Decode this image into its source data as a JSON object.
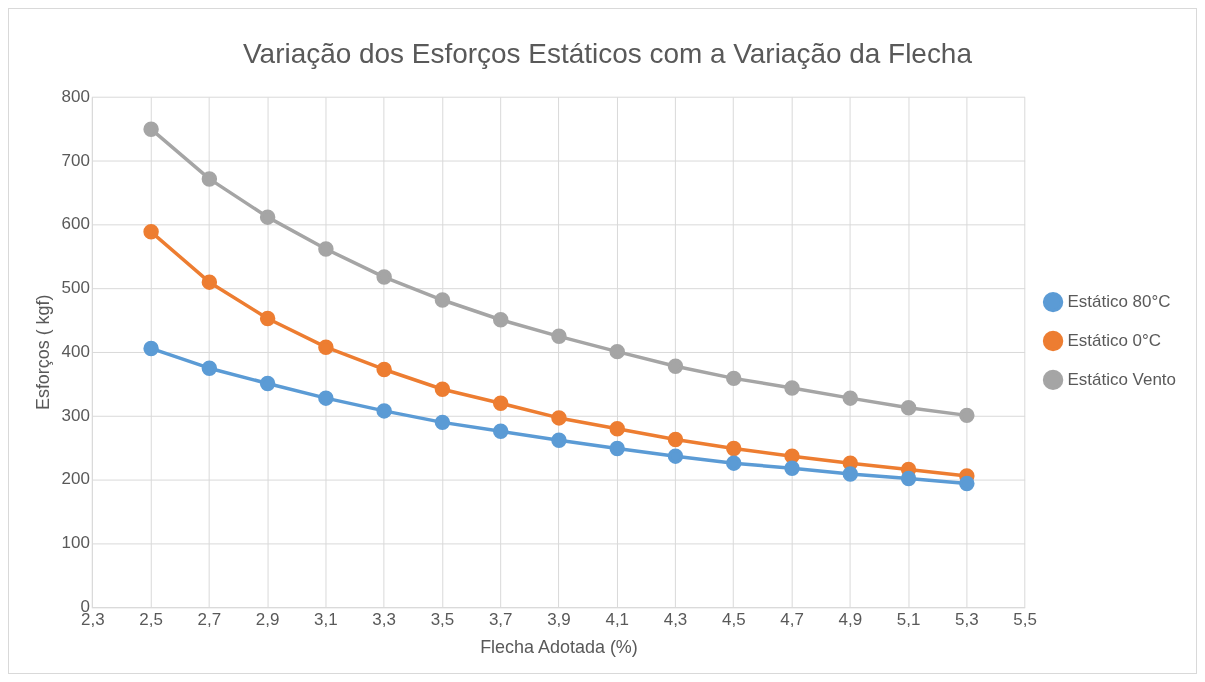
{
  "chart_data": {
    "type": "line",
    "title": "Variação dos Esforços Estáticos com a Variação da Flecha",
    "xlabel": "Flecha Adotada (%)",
    "ylabel": "Esforços ( kgf)",
    "x": [
      2.5,
      2.7,
      2.9,
      3.1,
      3.3,
      3.5,
      3.7,
      3.9,
      4.1,
      4.3,
      4.5,
      4.7,
      4.9,
      5.1,
      5.3
    ],
    "series": [
      {
        "name": "Estático 80°C",
        "color": "#5b9bd5",
        "values": [
          406,
          375,
          351,
          328,
          308,
          290,
          276,
          262,
          249,
          237,
          226,
          218,
          209,
          202,
          194
        ]
      },
      {
        "name": "Estático 0°C",
        "color": "#ed7d31",
        "values": [
          589,
          510,
          453,
          408,
          373,
          342,
          320,
          297,
          280,
          263,
          249,
          237,
          226,
          216,
          206
        ]
      },
      {
        "name": "Estático Vento",
        "color": "#a5a5a5",
        "values": [
          750,
          672,
          612,
          562,
          518,
          482,
          451,
          425,
          401,
          378,
          359,
          344,
          328,
          313,
          301
        ]
      }
    ],
    "xlim": [
      2.3,
      5.5
    ],
    "xticks": [
      {
        "value": 2.3,
        "label": "2,3"
      },
      {
        "value": 2.5,
        "label": "2,5"
      },
      {
        "value": 2.7,
        "label": "2,7"
      },
      {
        "value": 2.9,
        "label": "2,9"
      },
      {
        "value": 3.1,
        "label": "3,1"
      },
      {
        "value": 3.3,
        "label": "3,3"
      },
      {
        "value": 3.5,
        "label": "3,5"
      },
      {
        "value": 3.7,
        "label": "3,7"
      },
      {
        "value": 3.9,
        "label": "3,9"
      },
      {
        "value": 4.1,
        "label": "4,1"
      },
      {
        "value": 4.3,
        "label": "4,3"
      },
      {
        "value": 4.5,
        "label": "4,5"
      },
      {
        "value": 4.7,
        "label": "4,7"
      },
      {
        "value": 4.9,
        "label": "4,9"
      },
      {
        "value": 5.1,
        "label": "5,1"
      },
      {
        "value": 5.3,
        "label": "5,3"
      },
      {
        "value": 5.5,
        "label": "5,5"
      }
    ],
    "ylim": [
      0,
      800
    ],
    "yticks": [
      0,
      100,
      200,
      300,
      400,
      500,
      600,
      700,
      800
    ],
    "grid": true,
    "legend": "right",
    "marker": "circle",
    "line_style": "solid"
  }
}
